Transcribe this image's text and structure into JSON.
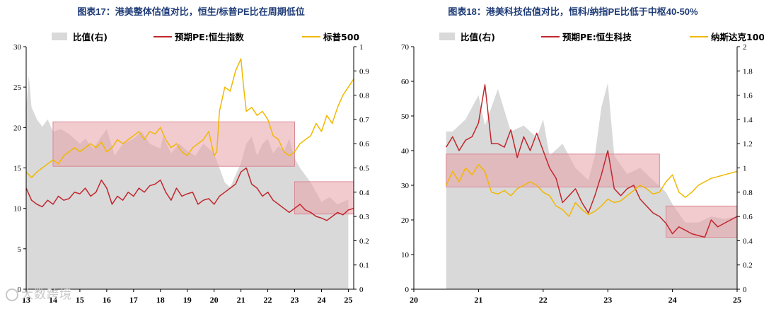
{
  "watermark": "大数跨境",
  "chart_data": [
    {
      "type": "line",
      "title": "图表17：港美整体估值对比，恒生/标普PE比在周期低位",
      "legend": {
        "placement": "top",
        "entries": [
          "比值(右)",
          "预期PE:恒生指数",
          "标普500"
        ]
      },
      "x_ticks": [
        "13",
        "14",
        "15",
        "16",
        "17",
        "18",
        "19",
        "20",
        "21",
        "22",
        "23",
        "24",
        "25"
      ],
      "xlim": [
        13,
        25.2
      ],
      "ylim_left": [
        0,
        30
      ],
      "yticks_left": [
        "0",
        "5",
        "10",
        "15",
        "20",
        "25",
        "30"
      ],
      "ylim_right": [
        0,
        1
      ],
      "yticks_right": [
        "0",
        "0.1",
        "0.2",
        "0.3",
        "0.4",
        "0.5",
        "0.6",
        "0.7",
        "0.8",
        "0.9",
        "1"
      ],
      "colors": {
        "ratio": "#d9d9d9",
        "hk": "#c0272d",
        "us": "#f0b800",
        "highlight": "#e8a0a8"
      },
      "highlights": [
        {
          "x": [
            14,
            23
          ],
          "y": [
            15.2,
            20.7
          ]
        },
        {
          "x": [
            23,
            25.2
          ],
          "y": [
            9.3,
            13.3
          ]
        }
      ],
      "series": [
        {
          "name": "比值(右)",
          "axis": "right",
          "kind": "area",
          "x": [
            13.0,
            13.1,
            13.2,
            13.4,
            13.6,
            13.8,
            14.0,
            14.3,
            14.6,
            15.0,
            15.2,
            15.5,
            15.8,
            16.0,
            16.3,
            16.6,
            17.0,
            17.3,
            17.6,
            18.0,
            18.1,
            18.4,
            18.7,
            19.0,
            19.3,
            19.6,
            20.0,
            20.2,
            20.4,
            20.6,
            20.8,
            21.0,
            21.2,
            21.4,
            21.6,
            21.8,
            22.0,
            22.2,
            22.4,
            22.6,
            22.8,
            23.0,
            23.2,
            23.4,
            23.6,
            23.8,
            24.0,
            24.3,
            24.6,
            25.0
          ],
          "values": [
            0.75,
            0.88,
            0.75,
            0.7,
            0.67,
            0.7,
            0.65,
            0.66,
            0.64,
            0.6,
            0.62,
            0.58,
            0.63,
            0.66,
            0.55,
            0.6,
            0.62,
            0.65,
            0.6,
            0.58,
            0.63,
            0.56,
            0.6,
            0.57,
            0.55,
            0.6,
            0.56,
            0.5,
            0.44,
            0.42,
            0.47,
            0.52,
            0.6,
            0.63,
            0.55,
            0.6,
            0.62,
            0.56,
            0.59,
            0.57,
            0.62,
            0.54,
            0.5,
            0.47,
            0.44,
            0.4,
            0.36,
            0.38,
            0.35,
            0.37
          ]
        },
        {
          "name": "预期PE:恒生指数",
          "axis": "left",
          "kind": "line",
          "x": [
            13.0,
            13.2,
            13.4,
            13.6,
            13.8,
            14.0,
            14.2,
            14.4,
            14.6,
            14.8,
            15.0,
            15.2,
            15.4,
            15.6,
            15.8,
            16.0,
            16.2,
            16.4,
            16.6,
            16.8,
            17.0,
            17.2,
            17.4,
            17.6,
            17.8,
            18.0,
            18.2,
            18.4,
            18.6,
            18.8,
            19.0,
            19.2,
            19.4,
            19.6,
            19.8,
            20.0,
            20.2,
            20.4,
            20.6,
            20.8,
            21.0,
            21.2,
            21.4,
            21.6,
            21.8,
            22.0,
            22.2,
            22.4,
            22.6,
            22.8,
            23.0,
            23.2,
            23.4,
            23.6,
            23.8,
            24.0,
            24.2,
            24.4,
            24.6,
            24.8,
            25.0,
            25.2
          ],
          "values": [
            12.5,
            11.0,
            10.5,
            10.2,
            11.0,
            10.5,
            11.5,
            11.0,
            11.2,
            12.0,
            11.8,
            12.5,
            11.5,
            12.0,
            13.5,
            12.5,
            10.5,
            11.5,
            11.0,
            12.0,
            11.5,
            12.5,
            12.0,
            12.8,
            13.0,
            13.5,
            12.0,
            11.0,
            12.5,
            11.5,
            11.8,
            12.0,
            10.5,
            11.0,
            11.2,
            10.5,
            11.5,
            12.0,
            12.5,
            13.0,
            14.5,
            15.0,
            13.0,
            12.5,
            11.5,
            12.0,
            11.0,
            10.5,
            10.0,
            9.5,
            10.0,
            10.5,
            9.8,
            9.5,
            9.0,
            8.8,
            8.5,
            9.0,
            9.5,
            9.2,
            9.8,
            10.0
          ]
        },
        {
          "name": "标普500",
          "axis": "left",
          "kind": "line",
          "x": [
            13.0,
            13.2,
            13.4,
            13.6,
            13.8,
            14.0,
            14.2,
            14.4,
            14.6,
            14.8,
            15.0,
            15.2,
            15.4,
            15.6,
            15.8,
            16.0,
            16.2,
            16.4,
            16.6,
            16.8,
            17.0,
            17.2,
            17.4,
            17.6,
            17.8,
            18.0,
            18.2,
            18.4,
            18.6,
            18.8,
            19.0,
            19.2,
            19.4,
            19.6,
            19.8,
            20.0,
            20.1,
            20.2,
            20.4,
            20.6,
            20.8,
            21.0,
            21.1,
            21.2,
            21.4,
            21.6,
            21.8,
            22.0,
            22.2,
            22.4,
            22.6,
            22.8,
            23.0,
            23.2,
            23.4,
            23.6,
            23.8,
            24.0,
            24.2,
            24.4,
            24.6,
            24.8,
            25.0,
            25.2
          ],
          "values": [
            14.5,
            13.8,
            14.5,
            15.0,
            15.5,
            16.0,
            15.5,
            16.5,
            17.0,
            17.5,
            17.0,
            17.5,
            18.0,
            17.5,
            18.2,
            17.0,
            17.5,
            18.5,
            18.0,
            18.5,
            19.0,
            19.5,
            18.5,
            19.5,
            19.2,
            20.0,
            18.5,
            17.5,
            18.0,
            17.0,
            16.5,
            17.5,
            18.0,
            18.5,
            19.5,
            16.5,
            17.0,
            22.0,
            25.0,
            24.5,
            27.0,
            28.5,
            25.0,
            22.0,
            22.5,
            21.5,
            22.0,
            21.0,
            19.0,
            18.5,
            17.0,
            16.5,
            17.0,
            18.0,
            18.5,
            19.0,
            20.5,
            19.5,
            21.5,
            20.5,
            22.5,
            24.0,
            25.0,
            26.0
          ]
        }
      ]
    },
    {
      "type": "line",
      "title": "图表18：港美科技估值对比，恒科/纳指PE比低于中枢40-50%",
      "legend": {
        "placement": "top",
        "entries": [
          "比值(右)",
          "预期PE:恒生科技",
          "纳斯达克100"
        ]
      },
      "x_ticks": [
        "20",
        "21",
        "22",
        "23",
        "24",
        "25"
      ],
      "xlim": [
        20,
        25
      ],
      "ylim_left": [
        0,
        70
      ],
      "yticks_left": [
        "0",
        "10",
        "20",
        "30",
        "40",
        "50",
        "60",
        "70"
      ],
      "ylim_right": [
        0,
        2
      ],
      "yticks_right": [
        "0",
        "0.2",
        "0.4",
        "0.6",
        "0.8",
        "1",
        "1.2",
        "1.4",
        "1.6",
        "1.8",
        "2"
      ],
      "colors": {
        "ratio": "#d9d9d9",
        "hk": "#c0272d",
        "us": "#f0b800",
        "highlight": "#e8a0a8"
      },
      "highlights": [
        {
          "x": [
            20.5,
            23.8
          ],
          "y": [
            29.5,
            39.0
          ]
        },
        {
          "x": [
            23.9,
            25.0
          ],
          "y": [
            15.0,
            24.0
          ]
        }
      ],
      "series": [
        {
          "name": "比值(右)",
          "axis": "right",
          "kind": "area",
          "x": [
            20.5,
            20.6,
            20.8,
            21.0,
            21.1,
            21.2,
            21.3,
            21.5,
            21.7,
            21.9,
            22.0,
            22.1,
            22.3,
            22.5,
            22.7,
            22.8,
            22.9,
            23.0,
            23.1,
            23.3,
            23.5,
            23.7,
            23.9,
            24.0,
            24.2,
            24.4,
            24.6,
            24.8,
            25.0
          ],
          "values": [
            1.3,
            1.3,
            1.4,
            1.6,
            1.35,
            1.5,
            1.65,
            1.3,
            1.35,
            1.25,
            1.4,
            1.1,
            1.2,
            1.0,
            0.9,
            1.1,
            1.5,
            1.7,
            1.1,
            0.95,
            1.0,
            0.9,
            0.8,
            0.7,
            0.55,
            0.55,
            0.6,
            0.58,
            0.6
          ]
        },
        {
          "name": "预期PE:恒生科技",
          "axis": "left",
          "kind": "line",
          "x": [
            20.5,
            20.6,
            20.7,
            20.8,
            20.9,
            21.0,
            21.1,
            21.2,
            21.3,
            21.4,
            21.5,
            21.6,
            21.7,
            21.8,
            21.9,
            22.0,
            22.1,
            22.2,
            22.3,
            22.4,
            22.5,
            22.6,
            22.7,
            22.8,
            22.9,
            23.0,
            23.1,
            23.2,
            23.3,
            23.4,
            23.5,
            23.6,
            23.7,
            23.8,
            23.9,
            24.0,
            24.1,
            24.2,
            24.3,
            24.4,
            24.5,
            24.6,
            24.7,
            24.8,
            24.9,
            25.0
          ],
          "values": [
            41.0,
            44.0,
            40.0,
            43.0,
            44.0,
            48.0,
            59.0,
            42.0,
            42.0,
            41.0,
            46.0,
            38.0,
            44.0,
            40.0,
            45.0,
            40.0,
            35.0,
            32.0,
            25.0,
            27.0,
            29.0,
            25.0,
            22.0,
            27.0,
            33.0,
            40.0,
            29.0,
            27.0,
            29.0,
            30.0,
            26.0,
            24.0,
            22.0,
            21.0,
            19.0,
            16.0,
            18.0,
            17.0,
            16.0,
            15.5,
            15.0,
            20.0,
            18.0,
            19.0,
            20.0,
            21.0
          ]
        },
        {
          "name": "纳斯达克100",
          "axis": "left",
          "kind": "line",
          "x": [
            20.5,
            20.6,
            20.7,
            20.8,
            20.9,
            21.0,
            21.1,
            21.2,
            21.3,
            21.4,
            21.5,
            21.6,
            21.7,
            21.8,
            21.9,
            22.0,
            22.1,
            22.2,
            22.3,
            22.4,
            22.5,
            22.6,
            22.7,
            22.8,
            22.9,
            23.0,
            23.1,
            23.2,
            23.3,
            23.4,
            23.5,
            23.6,
            23.7,
            23.8,
            23.9,
            24.0,
            24.1,
            24.2,
            24.3,
            24.4,
            24.5,
            24.6,
            24.7,
            24.8,
            24.9,
            25.0
          ],
          "values": [
            30.0,
            34.0,
            31.0,
            35.0,
            33.0,
            36.0,
            34.0,
            28.0,
            27.5,
            28.5,
            27.0,
            29.0,
            30.0,
            31.0,
            30.0,
            28.0,
            27.0,
            24.0,
            23.0,
            21.0,
            25.0,
            23.0,
            21.5,
            22.5,
            24.0,
            26.0,
            25.0,
            25.5,
            27.0,
            28.5,
            30.0,
            29.0,
            27.5,
            28.0,
            31.0,
            33.0,
            28.0,
            26.5,
            28.0,
            30.0,
            31.0,
            32.0,
            32.5,
            33.0,
            33.5,
            34.0
          ]
        }
      ]
    }
  ]
}
